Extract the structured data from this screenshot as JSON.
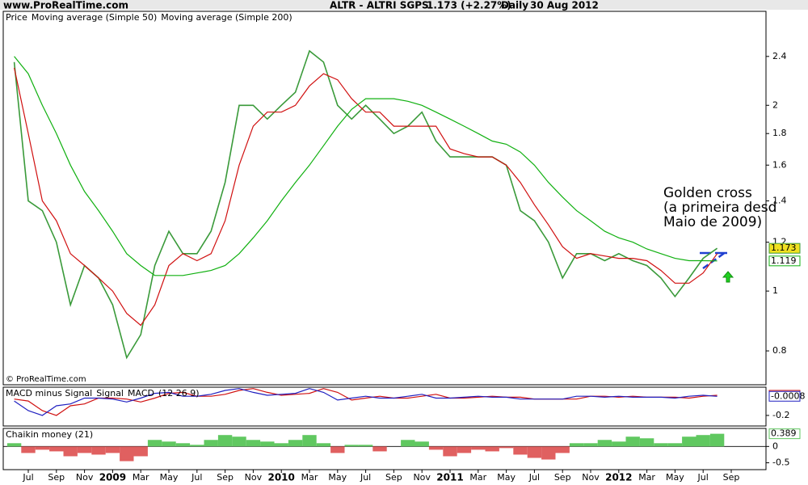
{
  "header": {
    "site": "www.ProRealTime.com",
    "symbol": "ALTR - ALTRI SGPS",
    "quote": "1.173 (+2.27%)",
    "period": "Daily",
    "date": "30 Aug 2012",
    "copyright": "© ProRealTime.com"
  },
  "chart_data": [
    {
      "type": "line",
      "log_scale": true,
      "ylim": [
        0.705,
        2.84
      ],
      "yticks": [
        0.8,
        1,
        1.2,
        1.4,
        1.6,
        1.8,
        2,
        2.4
      ],
      "series": [
        {
          "name": "Price",
          "color": "#3a9a3a",
          "values": [
            2.35,
            1.4,
            1.35,
            1.2,
            0.95,
            1.1,
            1.05,
            0.95,
            0.78,
            0.85,
            1.1,
            1.25,
            1.15,
            1.15,
            1.25,
            1.5,
            2.0,
            2.0,
            1.9,
            2.0,
            2.1,
            2.45,
            2.35,
            2.0,
            1.9,
            2.0,
            1.9,
            1.8,
            1.85,
            1.95,
            1.75,
            1.65,
            1.65,
            1.65,
            1.65,
            1.6,
            1.35,
            1.3,
            1.2,
            1.05,
            1.15,
            1.15,
            1.12,
            1.15,
            1.12,
            1.1,
            1.05,
            0.98,
            1.05,
            1.13,
            1.173,
            null
          ]
        },
        {
          "name": "Moving average (Simple 50)",
          "color": "#d01010",
          "values": [
            2.3,
            1.8,
            1.4,
            1.3,
            1.15,
            1.1,
            1.05,
            1.0,
            0.92,
            0.88,
            0.95,
            1.1,
            1.15,
            1.12,
            1.15,
            1.3,
            1.6,
            1.85,
            1.95,
            1.95,
            2.0,
            2.15,
            2.25,
            2.2,
            2.05,
            1.95,
            1.95,
            1.85,
            1.85,
            1.85,
            1.85,
            1.7,
            1.67,
            1.65,
            1.65,
            1.6,
            1.5,
            1.38,
            1.28,
            1.18,
            1.13,
            1.15,
            1.14,
            1.13,
            1.13,
            1.12,
            1.08,
            1.03,
            1.03,
            1.07,
            1.15,
            null
          ]
        },
        {
          "name": "Moving average (Simple 200)",
          "color": "#10b010",
          "values": [
            2.4,
            2.25,
            2.0,
            1.8,
            1.6,
            1.45,
            1.35,
            1.25,
            1.15,
            1.1,
            1.06,
            1.06,
            1.06,
            1.07,
            1.08,
            1.1,
            1.15,
            1.22,
            1.3,
            1.4,
            1.5,
            1.6,
            1.72,
            1.85,
            1.97,
            2.05,
            2.05,
            2.05,
            2.03,
            2.0,
            1.95,
            1.9,
            1.85,
            1.8,
            1.75,
            1.73,
            1.68,
            1.6,
            1.5,
            1.42,
            1.35,
            1.3,
            1.25,
            1.22,
            1.2,
            1.17,
            1.15,
            1.13,
            1.12,
            1.12,
            1.119,
            null
          ]
        }
      ],
      "annotation": [
        "Golden cross",
        "(a primeira desd",
        "Maio de 2009)"
      ]
    },
    {
      "type": "line",
      "log_scale": false,
      "ylim": [
        -0.31,
        0.094
      ],
      "yticks": [
        -0.2
      ],
      "label": "MACD minus Signal",
      "params": "(12 26 9)",
      "series": [
        {
          "name": "Signal",
          "color": "#d01010",
          "values": [
            -0.03,
            -0.05,
            -0.15,
            -0.2,
            -0.1,
            -0.08,
            -0.02,
            -0.02,
            -0.03,
            -0.06,
            -0.02,
            0.03,
            0.04,
            0.0,
            0.0,
            0.02,
            0.06,
            0.08,
            0.04,
            0.01,
            0.02,
            0.03,
            0.08,
            0.04,
            -0.04,
            -0.02,
            0.0,
            -0.02,
            -0.02,
            0.0,
            0.02,
            -0.02,
            -0.02,
            -0.01,
            0.0,
            -0.01,
            -0.01,
            -0.03,
            -0.03,
            -0.03,
            -0.03,
            0.0,
            0.0,
            -0.01,
            0.0,
            -0.01,
            -0.01,
            -0.01,
            -0.02,
            0.0,
            0.01,
            null
          ]
        },
        {
          "name": "MACD",
          "color": "#2020c0",
          "values": [
            -0.05,
            -0.15,
            -0.2,
            -0.1,
            -0.08,
            -0.02,
            -0.02,
            -0.03,
            -0.06,
            -0.02,
            0.03,
            0.04,
            0.0,
            0.0,
            0.02,
            0.06,
            0.08,
            0.04,
            0.01,
            0.02,
            0.03,
            0.08,
            0.04,
            -0.04,
            -0.02,
            0.0,
            -0.02,
            -0.02,
            0.0,
            0.02,
            -0.02,
            -0.02,
            -0.01,
            0.0,
            -0.01,
            -0.01,
            -0.03,
            -0.03,
            -0.03,
            -0.03,
            0.0,
            0.0,
            -0.01,
            0.0,
            -0.01,
            -0.01,
            -0.01,
            -0.02,
            0.0,
            0.01,
            -0.0008,
            null
          ]
        }
      ]
    },
    {
      "type": "bar",
      "log_scale": false,
      "ylim": [
        -0.71,
        0.553
      ],
      "yticks": [
        -0.5,
        0
      ],
      "colors": {
        "positive": "#60c860",
        "negative": "#e06060"
      },
      "series": [
        {
          "name": "Chaikin money (21)",
          "color": "#60c860",
          "values": [
            0.1,
            -0.2,
            -0.1,
            -0.15,
            -0.3,
            -0.2,
            -0.25,
            -0.2,
            -0.45,
            -0.3,
            0.2,
            0.15,
            0.1,
            0.05,
            0.2,
            0.35,
            0.3,
            0.2,
            0.15,
            0.1,
            0.2,
            0.35,
            0.1,
            -0.2,
            0.05,
            0.05,
            -0.15,
            0.0,
            0.2,
            0.15,
            -0.1,
            -0.3,
            -0.2,
            -0.1,
            -0.15,
            -0.05,
            -0.25,
            -0.35,
            -0.4,
            -0.2,
            0.1,
            0.1,
            0.2,
            0.15,
            0.3,
            0.25,
            0.1,
            0.1,
            0.3,
            0.35,
            0.389,
            null
          ]
        }
      ],
      "categories": [
        null,
        "Jul",
        null,
        "Sep",
        null,
        "Nov",
        null,
        "2009",
        null,
        "Mar",
        null,
        "May",
        null,
        "Jul",
        null,
        "Sep",
        null,
        "Nov",
        null,
        "2010",
        null,
        "Mar",
        null,
        "May",
        null,
        "Jul",
        null,
        "Sep",
        null,
        "Nov",
        null,
        "2011",
        null,
        "Mar",
        null,
        "May",
        null,
        "Jul",
        null,
        "Sep",
        null,
        "Nov",
        null,
        "2012",
        null,
        "Mar",
        null,
        "May",
        null,
        "Jul",
        null,
        "Sep"
      ]
    }
  ]
}
